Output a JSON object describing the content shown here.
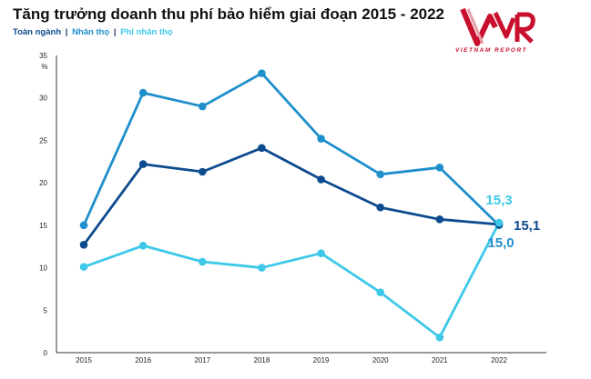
{
  "title": "Tăng trưởng doanh thu phí bảo hiểm giai đoạn 2015 - 2022",
  "legend": {
    "items": [
      {
        "label": "Toàn ngành",
        "color": "#0d4b8e"
      },
      {
        "label": "Nhân thọ",
        "color": "#1f8fcc"
      },
      {
        "label": "Phi nhân thọ",
        "color": "#3ec8e8"
      }
    ],
    "separator": "|"
  },
  "logo": {
    "mark": "VNR",
    "subtitle": "VIETNAM REPORT",
    "color": "#c8102e"
  },
  "chart_data": {
    "type": "line",
    "title": "Tăng trưởng doanh thu phí bảo hiểm giai đoạn 2015 - 2022",
    "ylabel": "%",
    "xlabel": "",
    "x": [
      "2015",
      "2016",
      "2017",
      "2018",
      "2019",
      "2020",
      "2021",
      "2022"
    ],
    "ylim": [
      0,
      35
    ],
    "yticks": [
      0,
      5,
      10,
      15,
      20,
      25,
      30,
      35
    ],
    "grid": false,
    "legend_position": "top-left",
    "series": [
      {
        "name": "Nhân thọ",
        "color": "#1f8fcc",
        "values": [
          15.0,
          30.6,
          29.0,
          32.9,
          25.2,
          21.0,
          21.8,
          15.0
        ]
      },
      {
        "name": "Toàn ngành",
        "color": "#0d4b8e",
        "values": [
          12.7,
          22.2,
          21.3,
          24.1,
          20.4,
          17.1,
          15.7,
          15.1
        ]
      },
      {
        "name": "Phi nhân thọ",
        "color": "#3ec8e8",
        "values": [
          10.1,
          12.6,
          10.7,
          10.0,
          11.7,
          7.1,
          1.8,
          15.3
        ]
      }
    ],
    "annotations": [
      {
        "text": "15,3",
        "series": "Phi nhân thọ",
        "color": "#3ec8e8"
      },
      {
        "text": "15,1",
        "series": "Toàn ngành",
        "color": "#0d4b8e"
      },
      {
        "text": "15,0",
        "series": "Nhân thọ",
        "color": "#1f8fcc"
      }
    ]
  }
}
